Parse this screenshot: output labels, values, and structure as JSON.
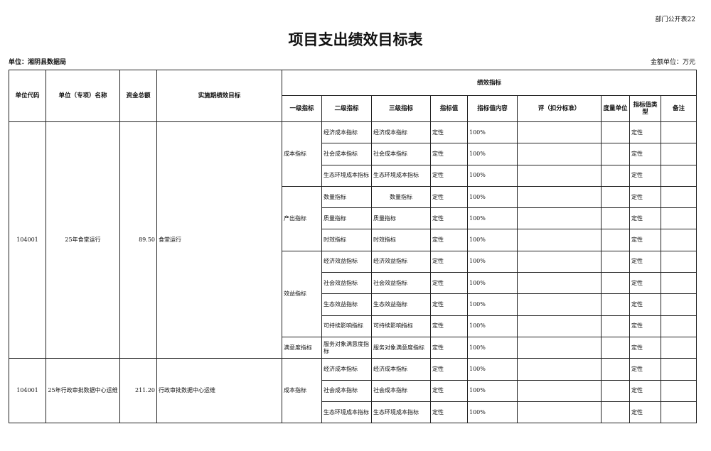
{
  "form_no": "部门公开表22",
  "title": "项目支出绩效目标表",
  "unit": "单位：湘阴县数据局",
  "amount_unit": "金额单位：万元",
  "headers": {
    "code": "单位代码",
    "name": "单位（专项）名称",
    "total": "资金总额",
    "goal": "实施期绩效目标",
    "perf": "绩效指标",
    "l1": "一级指标",
    "l2": "二级指标",
    "l3": "三级指标",
    "val": "指标值",
    "content": "指标值内容",
    "score": "评（扣分标准）",
    "measure": "度量单位",
    "vtype": "指标值类型",
    "note": "备注"
  },
  "projects": [
    {
      "code": "104001",
      "name": "25年食堂运行",
      "total": "89.50",
      "goal": "食堂运行",
      "groups": [
        {
          "l1": "成本指标",
          "rows": [
            [
              "经济成本指标",
              "经济成本指标",
              "定性",
              "100%",
              "",
              "",
              "定性",
              ""
            ],
            [
              "社会成本指标",
              "社会成本指标",
              "定性",
              "100%",
              "",
              "",
              "定性",
              ""
            ],
            [
              "生态环境成本指标",
              "生态环境成本指标",
              "定性",
              "100%",
              "",
              "",
              "定性",
              ""
            ]
          ]
        },
        {
          "l1": "产出指标",
          "rows": [
            [
              "数量指标",
              "数量指标",
              "定性",
              "100%",
              "",
              "",
              "定性",
              ""
            ],
            [
              "质量指标",
              "质量指标",
              "定性",
              "100%",
              "",
              "",
              "定性",
              ""
            ],
            [
              "时效指标",
              "时效指标",
              "定性",
              "100%",
              "",
              "",
              "定性",
              ""
            ]
          ]
        },
        {
          "l1": "效益指标",
          "rows": [
            [
              "经济效益指标",
              "经济效益指标",
              "定性",
              "100%",
              "",
              "",
              "定性",
              ""
            ],
            [
              "社会效益指标",
              "社会效益指标",
              "定性",
              "100%",
              "",
              "",
              "定性",
              ""
            ],
            [
              "生态效益指标",
              "生态效益指标",
              "定性",
              "100%",
              "",
              "",
              "定性",
              ""
            ],
            [
              "可持续影响指标",
              "可持续影响指标",
              "定性",
              "100%",
              "",
              "",
              "定性",
              ""
            ]
          ]
        },
        {
          "l1": "满意度指标",
          "rows": [
            [
              "服务对象满意度指标",
              "服务对象满意度指标",
              "定性",
              "100%",
              "",
              "",
              "定性",
              ""
            ]
          ]
        }
      ]
    },
    {
      "code": "104001",
      "name": "25年行政审批数据中心运维",
      "total": "211.20",
      "goal": "行政审批数据中心运维",
      "groups": [
        {
          "l1": "成本指标",
          "rows": [
            [
              "经济成本指标",
              "经济成本指标",
              "定性",
              "100%",
              "",
              "",
              "定性",
              ""
            ],
            [
              "社会成本指标",
              "社会成本指标",
              "定性",
              "100%",
              "",
              "",
              "定性",
              ""
            ],
            [
              "生态环境成本指标",
              "生态环境成本指标",
              "定性",
              "100%",
              "",
              "",
              "定性",
              ""
            ]
          ]
        }
      ]
    }
  ]
}
